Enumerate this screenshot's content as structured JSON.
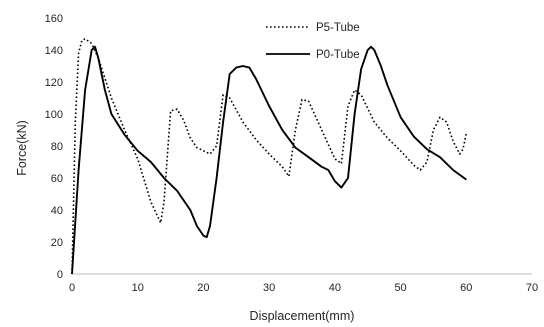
{
  "chart_data": {
    "type": "line",
    "xlabel": "Displacement(mm)",
    "ylabel": "Force(kN)",
    "xlim": [
      0,
      70
    ],
    "ylim": [
      0,
      160
    ],
    "xticks": [
      0,
      10,
      20,
      30,
      40,
      50,
      60,
      70
    ],
    "yticks": [
      0,
      20,
      40,
      60,
      80,
      100,
      120,
      140,
      160
    ],
    "grid": false,
    "legend_position": "top-center",
    "series": [
      {
        "name": "P5-Tube",
        "style": "dotted",
        "color": "#000000",
        "points": [
          [
            0,
            0
          ],
          [
            0.5,
            95
          ],
          [
            1,
            138
          ],
          [
            1.5,
            146
          ],
          [
            2,
            147
          ],
          [
            3,
            144
          ],
          [
            4,
            135
          ],
          [
            6,
            110
          ],
          [
            8,
            90
          ],
          [
            10,
            72
          ],
          [
            12,
            45
          ],
          [
            13.5,
            32
          ],
          [
            14,
            45
          ],
          [
            15,
            102
          ],
          [
            16,
            103
          ],
          [
            17,
            96
          ],
          [
            18,
            85
          ],
          [
            19,
            79
          ],
          [
            20,
            77
          ],
          [
            21,
            75
          ],
          [
            22,
            80
          ],
          [
            23,
            112
          ],
          [
            24,
            110
          ],
          [
            26,
            95
          ],
          [
            28,
            84
          ],
          [
            30,
            75
          ],
          [
            32,
            67
          ],
          [
            33,
            61
          ],
          [
            34,
            90
          ],
          [
            35,
            109
          ],
          [
            36,
            108
          ],
          [
            38,
            90
          ],
          [
            40,
            72
          ],
          [
            41,
            69
          ],
          [
            42,
            105
          ],
          [
            43,
            115
          ],
          [
            44,
            112
          ],
          [
            46,
            95
          ],
          [
            48,
            85
          ],
          [
            50,
            77
          ],
          [
            52,
            68
          ],
          [
            53,
            65
          ],
          [
            54,
            70
          ],
          [
            55,
            90
          ],
          [
            56,
            98
          ],
          [
            57,
            95
          ],
          [
            58,
            83
          ],
          [
            59,
            75
          ],
          [
            59.5,
            78
          ],
          [
            60,
            88
          ]
        ]
      },
      {
        "name": "P0-Tube",
        "style": "solid",
        "color": "#000000",
        "points": [
          [
            0,
            0
          ],
          [
            1,
            65
          ],
          [
            2,
            115
          ],
          [
            3,
            140
          ],
          [
            3.5,
            142
          ],
          [
            4,
            135
          ],
          [
            5,
            115
          ],
          [
            6,
            100
          ],
          [
            8,
            87
          ],
          [
            10,
            77
          ],
          [
            12,
            70
          ],
          [
            14,
            60
          ],
          [
            16,
            52
          ],
          [
            18,
            40
          ],
          [
            19,
            30
          ],
          [
            20,
            24
          ],
          [
            20.5,
            23
          ],
          [
            21,
            30
          ],
          [
            22,
            60
          ],
          [
            23,
            95
          ],
          [
            24,
            125
          ],
          [
            25,
            129
          ],
          [
            26,
            130
          ],
          [
            27,
            129
          ],
          [
            28,
            122
          ],
          [
            30,
            105
          ],
          [
            32,
            90
          ],
          [
            34,
            79
          ],
          [
            36,
            73
          ],
          [
            38,
            67
          ],
          [
            39,
            65
          ],
          [
            40,
            58
          ],
          [
            41,
            54
          ],
          [
            42,
            60
          ],
          [
            43,
            100
          ],
          [
            44,
            128
          ],
          [
            45,
            140
          ],
          [
            45.5,
            142
          ],
          [
            46,
            140
          ],
          [
            47,
            130
          ],
          [
            48,
            118
          ],
          [
            50,
            98
          ],
          [
            52,
            86
          ],
          [
            54,
            78
          ],
          [
            56,
            73
          ],
          [
            58,
            65
          ],
          [
            60,
            59
          ]
        ]
      }
    ]
  }
}
